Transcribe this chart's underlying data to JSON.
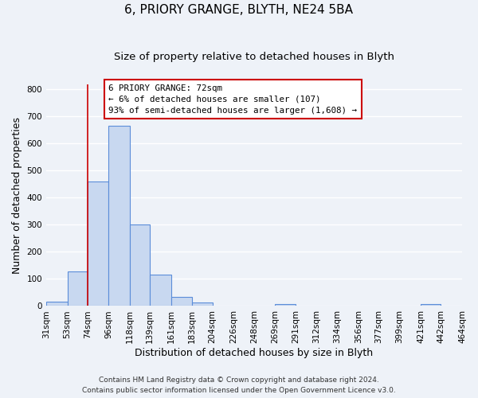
{
  "title1": "6, PRIORY GRANGE, BLYTH, NE24 5BA",
  "title2": "Size of property relative to detached houses in Blyth",
  "xlabel": "Distribution of detached houses by size in Blyth",
  "ylabel": "Number of detached properties",
  "bin_edges": [
    31,
    53,
    74,
    96,
    118,
    139,
    161,
    183,
    204,
    226,
    248,
    269,
    291,
    312,
    334,
    356,
    377,
    399,
    421,
    442,
    464
  ],
  "bin_labels": [
    "31sqm",
    "53sqm",
    "74sqm",
    "96sqm",
    "118sqm",
    "139sqm",
    "161sqm",
    "183sqm",
    "204sqm",
    "226sqm",
    "248sqm",
    "269sqm",
    "291sqm",
    "312sqm",
    "334sqm",
    "356sqm",
    "377sqm",
    "399sqm",
    "421sqm",
    "442sqm",
    "464sqm"
  ],
  "counts": [
    15,
    127,
    460,
    665,
    300,
    117,
    35,
    13,
    0,
    0,
    0,
    7,
    0,
    0,
    0,
    0,
    0,
    0,
    8,
    0
  ],
  "bar_facecolor": "#c8d8f0",
  "bar_edgecolor": "#5b8dd9",
  "vline_x": 74,
  "vline_color": "#cc0000",
  "ylim": [
    0,
    820
  ],
  "yticks": [
    0,
    100,
    200,
    300,
    400,
    500,
    600,
    700,
    800
  ],
  "annotation_line1": "6 PRIORY GRANGE: 72sqm",
  "annotation_line2": "← 6% of detached houses are smaller (107)",
  "annotation_line3": "93% of semi-detached houses are larger (1,608) →",
  "footer1": "Contains HM Land Registry data © Crown copyright and database right 2024.",
  "footer2": "Contains public sector information licensed under the Open Government Licence v3.0.",
  "bg_color": "#eef2f8",
  "grid_color": "#ffffff",
  "title_fontsize": 11,
  "subtitle_fontsize": 9.5,
  "label_fontsize": 9,
  "tick_fontsize": 7.5,
  "footer_fontsize": 6.5
}
